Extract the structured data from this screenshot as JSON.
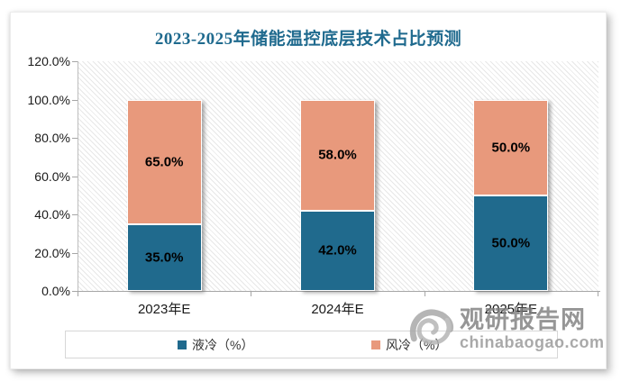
{
  "chart_data": {
    "type": "bar",
    "stacked": true,
    "title": "2023-2025年储能温控底层技术占比预测",
    "categories": [
      "2023年E",
      "2024年E",
      "2025年E"
    ],
    "series": [
      {
        "name": "液冷（%）",
        "color": "#206a8d",
        "values": [
          35.0,
          42.0,
          50.0
        ],
        "data_labels": [
          "35.0%",
          "42.0%",
          "50.0%"
        ]
      },
      {
        "name": "风冷（%）",
        "color": "#e8997c",
        "values": [
          65.0,
          58.0,
          50.0
        ],
        "data_labels": [
          "65.0%",
          "58.0%",
          "50.0%"
        ]
      }
    ],
    "xlabel": "",
    "ylabel": "",
    "ylim": [
      0,
      120
    ],
    "ytick_labels": [
      "0.0%",
      "20.0%",
      "40.0%",
      "60.0%",
      "80.0%",
      "100.0%",
      "120.0%"
    ],
    "grid": false,
    "legend_position": "bottom",
    "plot_background": "diagonal-hatch"
  },
  "colors": {
    "title": "#1f6a8e",
    "axis": "#a6a6a6",
    "liquid_cooling": "#206a8d",
    "air_cooling": "#e8997c"
  },
  "watermark": {
    "logo_icon": "swirl-logo",
    "site_name": "观研报告网",
    "site_url": "chinabaogao.com"
  }
}
